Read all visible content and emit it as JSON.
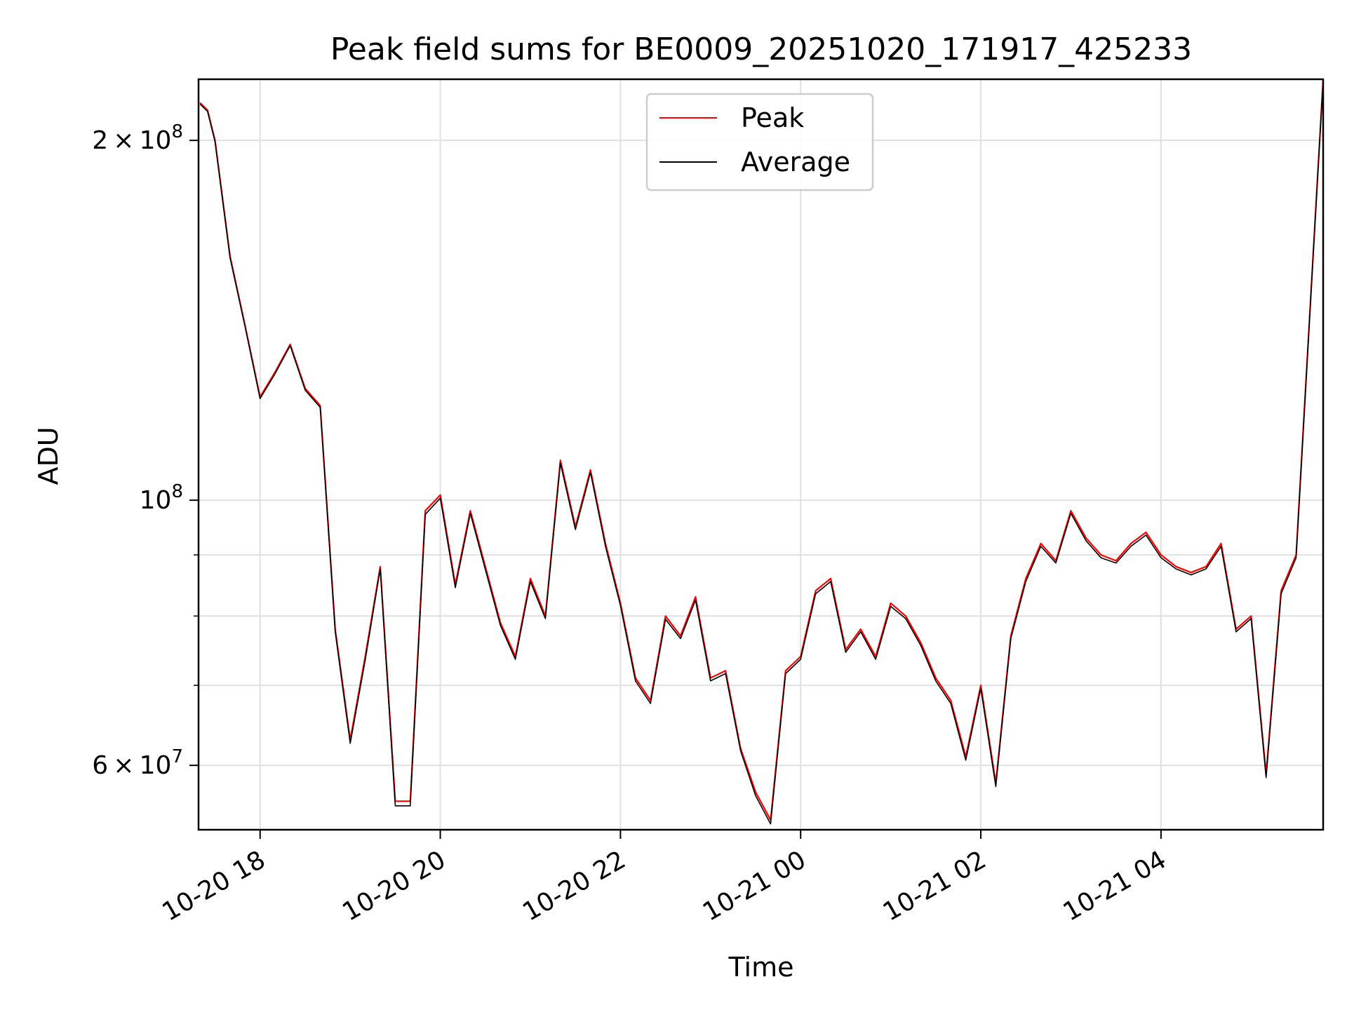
{
  "chart_data": {
    "type": "line",
    "title": "Peak field sums for BE0009_20251020_171917_425233",
    "xlabel": "Time",
    "ylabel": "ADU",
    "yscale": "log",
    "xlim": [
      "2025-10-20 17:19",
      "2025-10-21 05:48"
    ],
    "ylim": [
      53000000,
      225000000
    ],
    "grid": true,
    "legend_position": "upper center",
    "x_tick_labels": [
      "10-20 18",
      "10-20 20",
      "10-20 22",
      "10-21 00",
      "10-21 02",
      "10-21 04"
    ],
    "y_tick_labels": [
      {
        "value": 200000000,
        "mantissa": "2",
        "exponent": "8"
      },
      {
        "value": 100000000,
        "mantissa": "",
        "exponent": "8"
      },
      {
        "value": 60000000,
        "mantissa": "6",
        "exponent": "7"
      }
    ],
    "series": [
      {
        "name": "Peak",
        "color": "#ff0000",
        "x": [
          "2025-10-20 17:20",
          "2025-10-20 17:25",
          "2025-10-20 17:30",
          "2025-10-20 17:40",
          "2025-10-20 17:50",
          "2025-10-20 18:00",
          "2025-10-20 18:10",
          "2025-10-20 18:20",
          "2025-10-20 18:30",
          "2025-10-20 18:40",
          "2025-10-20 18:50",
          "2025-10-20 19:00",
          "2025-10-20 19:10",
          "2025-10-20 19:20",
          "2025-10-20 19:30",
          "2025-10-20 19:40",
          "2025-10-20 19:50",
          "2025-10-20 20:00",
          "2025-10-20 20:10",
          "2025-10-20 20:20",
          "2025-10-20 20:30",
          "2025-10-20 20:40",
          "2025-10-20 20:50",
          "2025-10-20 21:00",
          "2025-10-20 21:10",
          "2025-10-20 21:20",
          "2025-10-20 21:30",
          "2025-10-20 21:40",
          "2025-10-20 21:50",
          "2025-10-20 22:00",
          "2025-10-20 22:10",
          "2025-10-20 22:20",
          "2025-10-20 22:30",
          "2025-10-20 22:40",
          "2025-10-20 22:50",
          "2025-10-20 23:00",
          "2025-10-20 23:10",
          "2025-10-20 23:20",
          "2025-10-20 23:30",
          "2025-10-20 23:40",
          "2025-10-20 23:50",
          "2025-10-21 00:00",
          "2025-10-21 00:10",
          "2025-10-21 00:20",
          "2025-10-21 00:30",
          "2025-10-21 00:40",
          "2025-10-21 00:50",
          "2025-10-21 01:00",
          "2025-10-21 01:10",
          "2025-10-21 01:20",
          "2025-10-21 01:30",
          "2025-10-21 01:40",
          "2025-10-21 01:50",
          "2025-10-21 02:00",
          "2025-10-21 02:10",
          "2025-10-21 02:20",
          "2025-10-21 02:30",
          "2025-10-21 02:40",
          "2025-10-21 02:50",
          "2025-10-21 03:00",
          "2025-10-21 03:10",
          "2025-10-21 03:20",
          "2025-10-21 03:30",
          "2025-10-21 03:40",
          "2025-10-21 03:50",
          "2025-10-21 04:00",
          "2025-10-21 04:10",
          "2025-10-21 04:20",
          "2025-10-21 04:30",
          "2025-10-21 04:40",
          "2025-10-21 04:50",
          "2025-10-21 05:00",
          "2025-10-21 05:10",
          "2025-10-21 05:20",
          "2025-10-21 05:30",
          "2025-10-21 05:40",
          "2025-10-21 05:48"
        ],
        "values": [
          215000000,
          212000000,
          200000000,
          160000000,
          140000000,
          122000000,
          128000000,
          135000000,
          124000000,
          120000000,
          78000000,
          63000000,
          74000000,
          88000000,
          56000000,
          56000000,
          98000000,
          101000000,
          85000000,
          98000000,
          88000000,
          79000000,
          74000000,
          86000000,
          80000000,
          108000000,
          95000000,
          106000000,
          92000000,
          82000000,
          71000000,
          68000000,
          80000000,
          77000000,
          83000000,
          71000000,
          72000000,
          62000000,
          57000000,
          54000000,
          72000000,
          74000000,
          84000000,
          86000000,
          75000000,
          78000000,
          74000000,
          82000000,
          80000000,
          76000000,
          71000000,
          68000000,
          61000000,
          70000000,
          58000000,
          77000000,
          86000000,
          92000000,
          89000000,
          98000000,
          93000000,
          90000000,
          89000000,
          92000000,
          94000000,
          90000000,
          88000000,
          87000000,
          88000000,
          92000000,
          78000000,
          80000000,
          59000000,
          84000000,
          90000000,
          150000000,
          225000000
        ]
      },
      {
        "name": "Average",
        "color": "#000000",
        "x": [
          "2025-10-20 17:20",
          "2025-10-20 17:25",
          "2025-10-20 17:30",
          "2025-10-20 17:40",
          "2025-10-20 17:50",
          "2025-10-20 18:00",
          "2025-10-20 18:10",
          "2025-10-20 18:20",
          "2025-10-20 18:30",
          "2025-10-20 18:40",
          "2025-10-20 18:50",
          "2025-10-20 19:00",
          "2025-10-20 19:10",
          "2025-10-20 19:20",
          "2025-10-20 19:30",
          "2025-10-20 19:40",
          "2025-10-20 19:50",
          "2025-10-20 20:00",
          "2025-10-20 20:10",
          "2025-10-20 20:20",
          "2025-10-20 20:30",
          "2025-10-20 20:40",
          "2025-10-20 20:50",
          "2025-10-20 21:00",
          "2025-10-20 21:10",
          "2025-10-20 21:20",
          "2025-10-20 21:30",
          "2025-10-20 21:40",
          "2025-10-20 21:50",
          "2025-10-20 22:00",
          "2025-10-20 22:10",
          "2025-10-20 22:20",
          "2025-10-20 22:30",
          "2025-10-20 22:40",
          "2025-10-20 22:50",
          "2025-10-20 23:00",
          "2025-10-20 23:10",
          "2025-10-20 23:20",
          "2025-10-20 23:30",
          "2025-10-20 23:40",
          "2025-10-20 23:50",
          "2025-10-21 00:00",
          "2025-10-21 00:10",
          "2025-10-21 00:20",
          "2025-10-21 00:30",
          "2025-10-21 00:40",
          "2025-10-21 00:50",
          "2025-10-21 01:00",
          "2025-10-21 01:10",
          "2025-10-21 01:20",
          "2025-10-21 01:30",
          "2025-10-21 01:40",
          "2025-10-21 01:50",
          "2025-10-21 02:00",
          "2025-10-21 02:10",
          "2025-10-21 02:20",
          "2025-10-21 02:30",
          "2025-10-21 02:40",
          "2025-10-21 02:50",
          "2025-10-21 03:00",
          "2025-10-21 03:10",
          "2025-10-21 03:20",
          "2025-10-21 03:30",
          "2025-10-21 03:40",
          "2025-10-21 03:50",
          "2025-10-21 04:00",
          "2025-10-21 04:10",
          "2025-10-21 04:20",
          "2025-10-21 04:30",
          "2025-10-21 04:40",
          "2025-10-21 04:50",
          "2025-10-21 05:00",
          "2025-10-21 05:10",
          "2025-10-21 05:20",
          "2025-10-21 05:30",
          "2025-10-21 05:40",
          "2025-10-21 05:48"
        ],
        "values": [
          214500000,
          211500000,
          199500000,
          159500000,
          139700000,
          121600000,
          127600000,
          134700000,
          123600000,
          119600000,
          77600000,
          62600000,
          73500000,
          87600000,
          55500000,
          55500000,
          97300000,
          100400000,
          84500000,
          97500000,
          87500000,
          78600000,
          73600000,
          85500000,
          79600000,
          107400000,
          94500000,
          105500000,
          91500000,
          81600000,
          70600000,
          67600000,
          79500000,
          76600000,
          82500000,
          70600000,
          71600000,
          61700000,
          56600000,
          53600000,
          71600000,
          73600000,
          83500000,
          85500000,
          74600000,
          77600000,
          73600000,
          81500000,
          79600000,
          75600000,
          70600000,
          67600000,
          60600000,
          69600000,
          57600000,
          76600000,
          85500000,
          91500000,
          88600000,
          97500000,
          92500000,
          89500000,
          88600000,
          91500000,
          93500000,
          89500000,
          87600000,
          86600000,
          87600000,
          91500000,
          77600000,
          79600000,
          58600000,
          83500000,
          89500000,
          149500000,
          224500000
        ]
      }
    ]
  }
}
